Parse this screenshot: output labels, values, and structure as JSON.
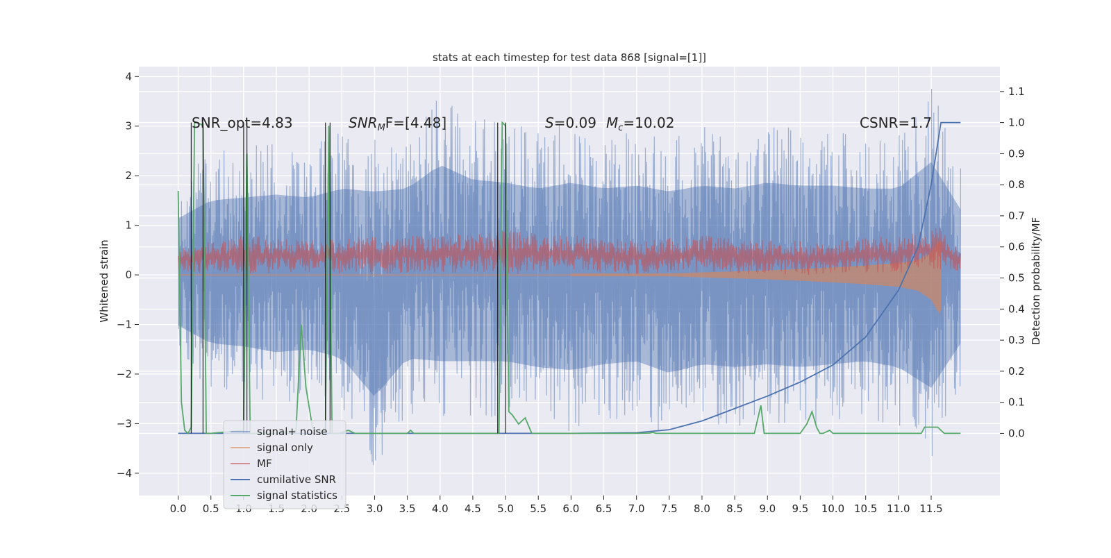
{
  "chart_data": {
    "type": "line",
    "title": "stats at each timestep for test data 868 [signal=[1]]",
    "xlabel": "",
    "ylabel": "Whitened strain",
    "ylabel_right": "Detection probability/MF",
    "xlim": [
      -0.6,
      12.55
    ],
    "ylim": [
      -4.45,
      4.2
    ],
    "ylim_right": [
      -0.2,
      1.18
    ],
    "x_ticks": [
      "0.0",
      "0.5",
      "1.0",
      "1.5",
      "2.0",
      "2.5",
      "3.0",
      "3.5",
      "4.0",
      "4.5",
      "5.0",
      "5.5",
      "6.0",
      "6.5",
      "7.0",
      "7.5",
      "8.0",
      "8.5",
      "9.0",
      "9.5",
      "10.0",
      "10.5",
      "11.0",
      "11.5"
    ],
    "y_ticks": [
      "4",
      "3",
      "2",
      "1",
      "0",
      "−1",
      "−2",
      "−3",
      "−4"
    ],
    "y_ticks_right": [
      "1.1",
      "1.0",
      "0.9",
      "0.8",
      "0.7",
      "0.6",
      "0.5",
      "0.4",
      "0.3",
      "0.2",
      "0.1",
      "0.0"
    ],
    "grid": true,
    "legend_position": "lower-left",
    "annotations": [
      {
        "id": "snr-opt",
        "text": "SNR_opt=4.83"
      },
      {
        "id": "snr-mf-left",
        "text": "SNR",
        "sub": "M",
        "suffix": "F=[4.48]"
      },
      {
        "id": "s-mc",
        "text": "S",
        "suffix": "=0.09",
        "text2": "M",
        "sub2": "c",
        "suffix2": "=10.02"
      },
      {
        "id": "csnr",
        "text": "CSNR=1.7"
      }
    ],
    "series": [
      {
        "name": "signal+ noise",
        "color": "#4c72b0",
        "opacity": 0.5,
        "axis": "left",
        "envelope": {
          "x": [
            0.0,
            0.5,
            1.0,
            1.5,
            2.0,
            2.5,
            3.0,
            3.5,
            4.0,
            4.5,
            5.0,
            5.5,
            6.0,
            6.5,
            7.0,
            7.5,
            8.0,
            8.5,
            9.0,
            9.5,
            10.0,
            10.5,
            11.0,
            11.5,
            11.95
          ],
          "upper": [
            1.9,
            2.5,
            2.6,
            2.7,
            2.6,
            2.9,
            2.8,
            2.9,
            3.7,
            3.2,
            3.1,
            2.9,
            3.1,
            2.9,
            3.0,
            2.8,
            3.0,
            2.9,
            3.1,
            3.0,
            3.0,
            2.9,
            2.9,
            3.8,
            2.2
          ],
          "lower": [
            -1.7,
            -2.3,
            -2.4,
            -2.6,
            -2.5,
            -2.8,
            -4.1,
            -2.8,
            -2.9,
            -2.9,
            -2.9,
            -3.1,
            -3.2,
            -3.0,
            -2.9,
            -3.3,
            -3.0,
            -3.1,
            -3.0,
            -3.1,
            -3.0,
            -2.9,
            -3.1,
            -3.8,
            -2.3
          ]
        }
      },
      {
        "name": "signal only",
        "color": "#dd8452",
        "opacity": 0.6,
        "axis": "left",
        "envelope": {
          "x": [
            0.0,
            7.5,
            8.0,
            8.5,
            9.0,
            9.5,
            10.0,
            10.5,
            11.0,
            11.3,
            11.5,
            11.62,
            11.95
          ],
          "upper": [
            0.02,
            0.03,
            0.05,
            0.07,
            0.09,
            0.12,
            0.15,
            0.19,
            0.24,
            0.3,
            0.45,
            0.7,
            0.0
          ],
          "lower": [
            -0.02,
            -0.03,
            -0.05,
            -0.07,
            -0.09,
            -0.12,
            -0.15,
            -0.19,
            -0.24,
            -0.32,
            -0.5,
            -0.78,
            0.0
          ]
        }
      },
      {
        "name": "MF",
        "color": "#c44e52",
        "opacity": 0.6,
        "axis": "left",
        "envelope": {
          "x": [
            0.0,
            1.0,
            2.0,
            3.0,
            4.0,
            5.0,
            6.0,
            7.0,
            8.0,
            9.0,
            10.0,
            11.0,
            11.5,
            11.62,
            11.95
          ],
          "upper": [
            0.6,
            0.8,
            0.7,
            0.8,
            0.8,
            0.9,
            0.8,
            0.7,
            0.8,
            0.7,
            0.7,
            0.8,
            0.9,
            1.0,
            0.5
          ],
          "lower": [
            0.05,
            0.0,
            0.05,
            0.0,
            0.05,
            0.0,
            0.05,
            0.0,
            0.05,
            0.0,
            0.0,
            0.05,
            0.1,
            0.1,
            0.0
          ]
        }
      },
      {
        "name": "cumilative SNR",
        "color": "#4c72b0",
        "axis": "right",
        "x": [
          0.0,
          2.0,
          4.0,
          6.0,
          7.0,
          7.5,
          8.0,
          8.5,
          9.0,
          9.5,
          10.0,
          10.5,
          11.0,
          11.3,
          11.5,
          11.65,
          11.95
        ],
        "y": [
          0.0,
          0.0,
          0.0,
          0.0,
          0.002,
          0.012,
          0.04,
          0.08,
          0.12,
          0.165,
          0.22,
          0.31,
          0.46,
          0.6,
          0.8,
          1.0,
          1.0
        ]
      },
      {
        "name": "signal statistics",
        "color": "#55a868",
        "axis": "right",
        "x": [
          0.0,
          0.05,
          0.1,
          0.15,
          0.2,
          0.25,
          0.3,
          0.38,
          0.43,
          0.5,
          1.0,
          1.05,
          1.1,
          1.2,
          1.5,
          1.8,
          1.88,
          1.95,
          2.05,
          2.15,
          2.25,
          2.3,
          2.35,
          2.4,
          2.45,
          2.6,
          2.7,
          3.0,
          3.5,
          3.55,
          3.6,
          4.0,
          4.8,
          4.9,
          4.95,
          5.0,
          5.05,
          5.1,
          5.2,
          5.3,
          5.4,
          5.5,
          5.55,
          5.6,
          6.0,
          7.0,
          7.2,
          7.25,
          7.3,
          8.0,
          8.8,
          8.9,
          8.95,
          9.0,
          9.5,
          9.6,
          9.68,
          9.75,
          9.8,
          9.85,
          9.95,
          10.0,
          10.5,
          10.8,
          10.9,
          11.0,
          11.35,
          11.4,
          11.5,
          11.6,
          11.7,
          11.95
        ],
        "y": [
          0.78,
          0.1,
          0.01,
          0.0,
          0.02,
          1.0,
          1.0,
          0.99,
          0.0,
          0.0,
          0.01,
          0.9,
          0.0,
          0.0,
          0.0,
          0.01,
          0.35,
          0.15,
          0.02,
          0.0,
          0.02,
          0.99,
          0.0,
          0.0,
          0.0,
          0.01,
          0.0,
          0.0,
          0.0,
          0.01,
          0.0,
          0.0,
          0.0,
          0.0,
          1.0,
          0.99,
          0.07,
          0.06,
          0.03,
          0.05,
          0.0,
          0.0,
          0.0,
          0.0,
          0.0,
          0.0,
          0.001,
          0.003,
          0.0,
          0.0,
          0.0,
          0.09,
          0.0,
          0.0,
          0.0,
          0.03,
          0.07,
          0.02,
          0.0,
          0.0,
          0.01,
          0.0,
          0.0,
          0.0,
          0.0,
          0.0,
          0.0,
          0.02,
          0.02,
          0.02,
          0.0,
          0.0
        ]
      }
    ],
    "vertical_lines": [
      0.2,
      0.38,
      1.0,
      1.05,
      2.25,
      2.32,
      4.88,
      5.0
    ]
  }
}
